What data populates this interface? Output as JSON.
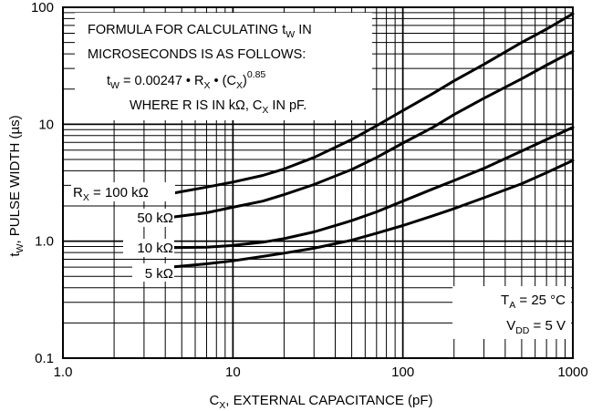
{
  "chart_data": {
    "type": "line",
    "title": "",
    "xlabel": {
      "main": "C",
      "sub": "X",
      "rest": ", EXTERNAL CAPACITANCE (pF)"
    },
    "ylabel": {
      "main": "t",
      "sub": "W",
      "rest": ", PULSE WIDTH (µs)"
    },
    "x_scale": "log",
    "y_scale": "log",
    "xlim": [
      1,
      1000
    ],
    "ylim": [
      0.1,
      100
    ],
    "grid": true,
    "x_ticks": [
      {
        "value": 1,
        "label": "1.0"
      },
      {
        "value": 10,
        "label": "10"
      },
      {
        "value": 100,
        "label": "100"
      },
      {
        "value": 1000,
        "label": "1000"
      }
    ],
    "y_ticks": [
      {
        "value": 0.1,
        "label": "0.1"
      },
      {
        "value": 1,
        "label": "1.0"
      },
      {
        "value": 10,
        "label": "10"
      },
      {
        "value": 100,
        "label": "100"
      }
    ],
    "formula_note": {
      "line1": {
        "a": "FORMULA FOR CALCULATING t",
        "sub": "W",
        "b": " IN"
      },
      "line2": {
        "a": "MICROSECONDS IS AS FOLLOWS:"
      },
      "line3": {
        "a": "t",
        "sub1": "W",
        "b": " = 0.00247 • R",
        "sub2": "X",
        "c": " • (C",
        "sub3": "X",
        "d": ")",
        "sup": "0.85"
      },
      "line4": {
        "a": "WHERE R IS IN kΩ, C",
        "sub": "X",
        "b": " IN pF."
      }
    },
    "conditions": {
      "ta": {
        "a": "T",
        "sub": "A",
        "b": " = 25 °C"
      },
      "vdd": {
        "a": "V",
        "sub": "DD",
        "b": " = 5 V"
      }
    },
    "series": [
      {
        "name": {
          "prefix": "R",
          "sub": "X",
          "value": " = 100 kΩ"
        },
        "x": [
          4.3,
          7,
          10,
          15,
          20,
          30,
          50,
          70,
          100,
          150,
          200,
          300,
          500,
          700,
          1000
        ],
        "y": [
          2.55,
          2.9,
          3.2,
          3.65,
          4.15,
          5.2,
          7.4,
          9.7,
          13.1,
          18.3,
          23.5,
          32.5,
          50,
          65,
          88
        ]
      },
      {
        "name": {
          "prefix": "",
          "sub": "",
          "value": "50 kΩ"
        },
        "x": [
          4.3,
          7,
          10,
          15,
          20,
          30,
          50,
          70,
          100,
          150,
          200,
          300,
          500,
          700,
          1000
        ],
        "y": [
          1.6,
          1.75,
          1.95,
          2.2,
          2.5,
          3.05,
          4.1,
          5.2,
          6.9,
          9.4,
          12.1,
          16.7,
          24.5,
          32,
          42
        ]
      },
      {
        "name": {
          "prefix": "",
          "sub": "",
          "value": "10 kΩ"
        },
        "x": [
          4.3,
          7,
          10,
          15,
          20,
          30,
          50,
          70,
          100,
          150,
          200,
          300,
          500,
          700,
          1000
        ],
        "y": [
          0.88,
          0.89,
          0.92,
          0.98,
          1.05,
          1.2,
          1.5,
          1.78,
          2.2,
          2.8,
          3.3,
          4.2,
          5.9,
          7.4,
          9.4
        ]
      },
      {
        "name": {
          "prefix": "",
          "sub": "",
          "value": "5 kΩ"
        },
        "x": [
          4.3,
          7,
          10,
          15,
          20,
          30,
          50,
          70,
          100,
          150,
          200,
          300,
          500,
          700,
          1000
        ],
        "y": [
          0.6,
          0.64,
          0.68,
          0.74,
          0.79,
          0.87,
          1.02,
          1.17,
          1.36,
          1.65,
          1.9,
          2.35,
          3.1,
          3.85,
          4.9
        ]
      }
    ]
  }
}
